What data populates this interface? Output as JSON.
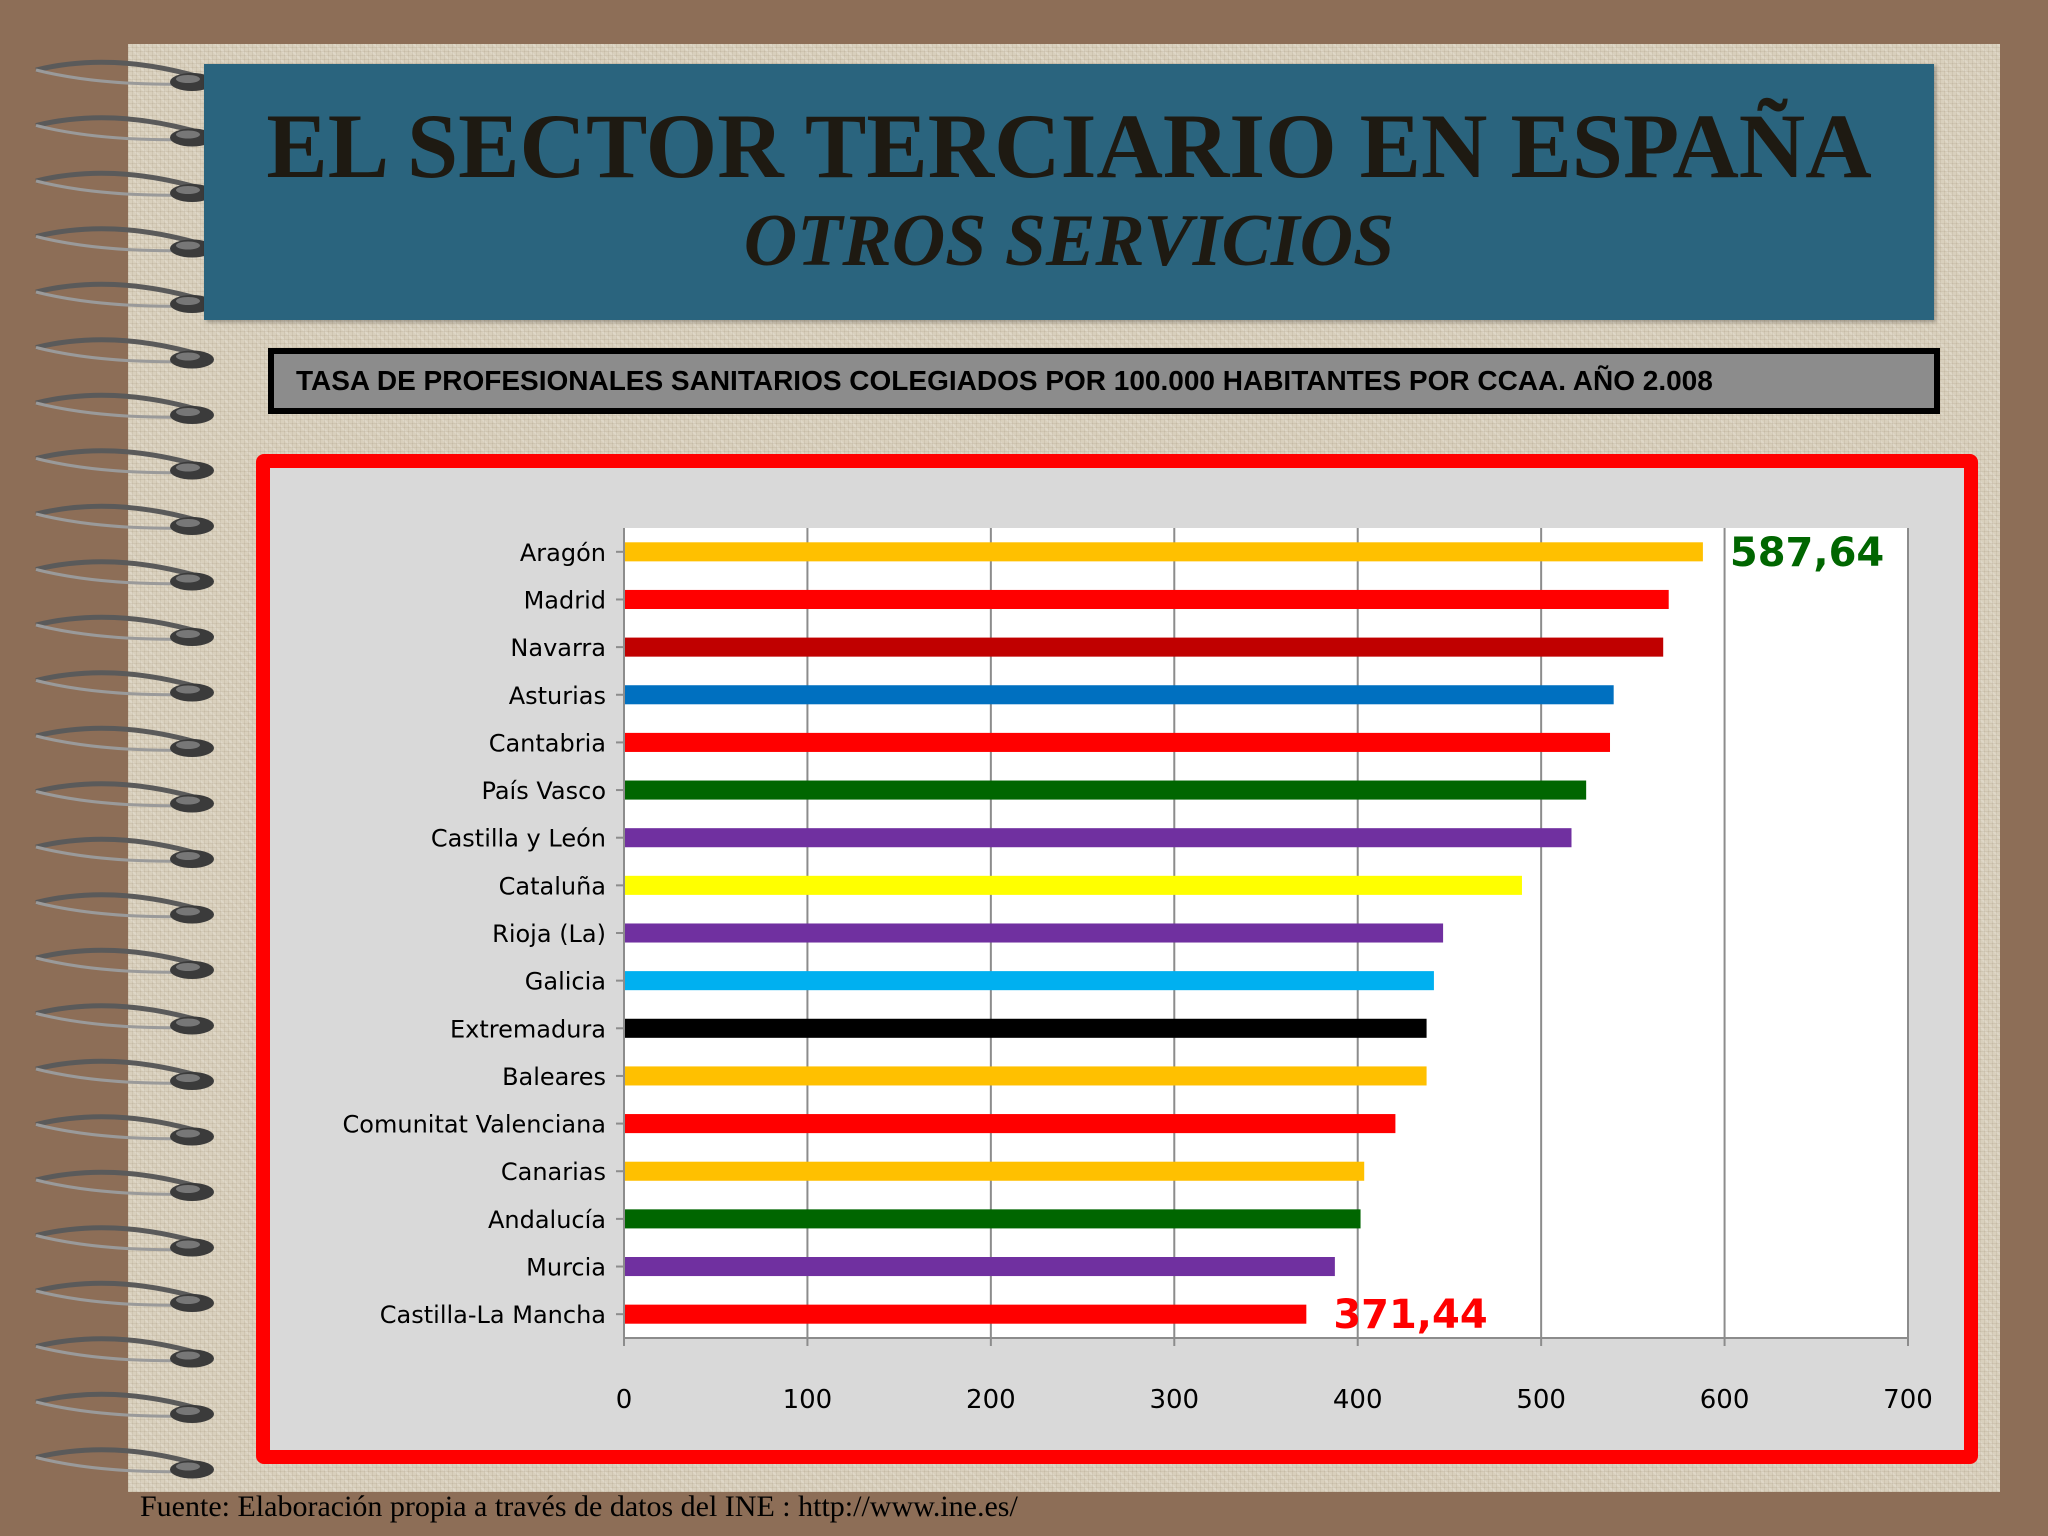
{
  "title": "EL SECTOR TERCIARIO EN ESPAÑA",
  "subtitle": "OTROS SERVICIOS",
  "chart_title": "TASA DE PROFESIONALES SANITARIOS COLEGIADOS POR 100.000 HABITANTES POR CCAA.  AÑO 2.008",
  "source": "Fuente: Elaboración propia a través de datos del  INE : http://www.ine.es/",
  "chart_data": {
    "type": "bar",
    "orientation": "horizontal",
    "categories": [
      "Aragón",
      "Madrid",
      "Navarra",
      "Asturias",
      "Cantabria",
      "País Vasco",
      "Castilla y León",
      "Cataluña",
      "Rioja (La)",
      "Galicia",
      "Extremadura",
      "Baleares",
      "Comunitat Valenciana",
      "Canarias",
      "Andalucía",
      "Murcia",
      "Castilla-La Mancha"
    ],
    "values": [
      587.64,
      569,
      566,
      539,
      537,
      524,
      516,
      489,
      446,
      441,
      437,
      437,
      420,
      403,
      401,
      387,
      371.44
    ],
    "colors": [
      "#ffc000",
      "#ff0000",
      "#c00000",
      "#0070c0",
      "#ff0000",
      "#006600",
      "#7030a0",
      "#ffff00",
      "#7030a0",
      "#00b0f0",
      "#000000",
      "#ffc000",
      "#ff0000",
      "#ffc000",
      "#006600",
      "#7030a0",
      "#ff0000"
    ],
    "xlim": [
      0,
      700
    ],
    "xticks": [
      0,
      100,
      200,
      300,
      400,
      500,
      600,
      700
    ],
    "grid": true,
    "annotations": [
      {
        "text": "587,64",
        "category": "Aragón",
        "color": "#006600"
      },
      {
        "text": "371,44",
        "category": "Castilla-La Mancha",
        "color": "#ff0000"
      }
    ]
  }
}
